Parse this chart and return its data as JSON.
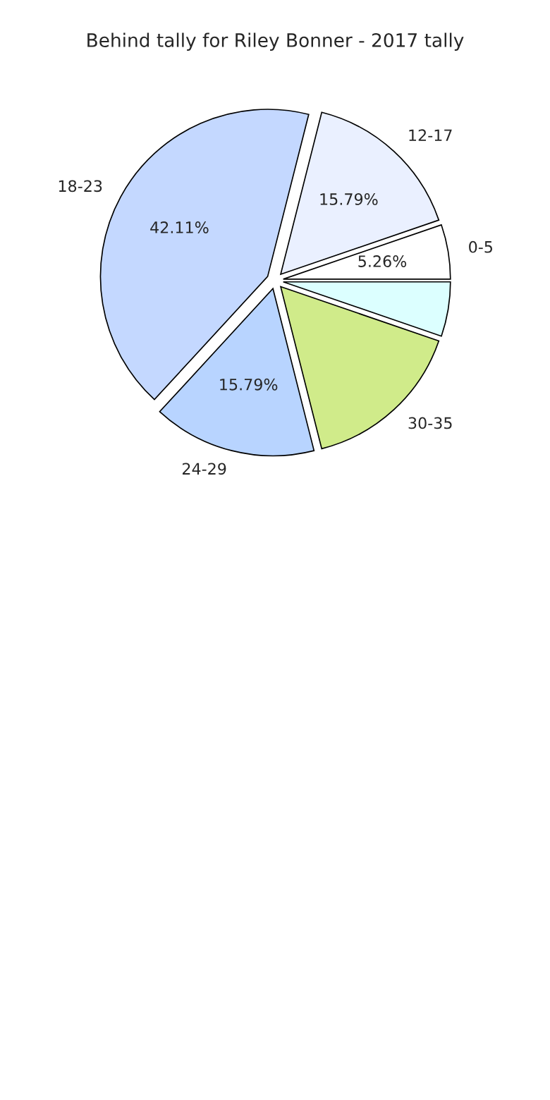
{
  "chart_data": {
    "type": "pie",
    "title": "Behind tally for Riley Bonner - 2017 tally",
    "categories": [
      "0-5",
      "12-17",
      "18-23",
      "24-29",
      "30-35",
      null
    ],
    "values": [
      5.26,
      15.79,
      42.11,
      15.79,
      15.79,
      5.26
    ],
    "colors": [
      "#ffffff",
      "#eaf0ff",
      "#c4d8ff",
      "#b8d4ff",
      "#d0eb8a",
      "#dcffff"
    ],
    "value_labels": [
      "5.26%",
      "15.79%",
      "42.11%",
      "15.79%",
      null,
      null
    ]
  }
}
